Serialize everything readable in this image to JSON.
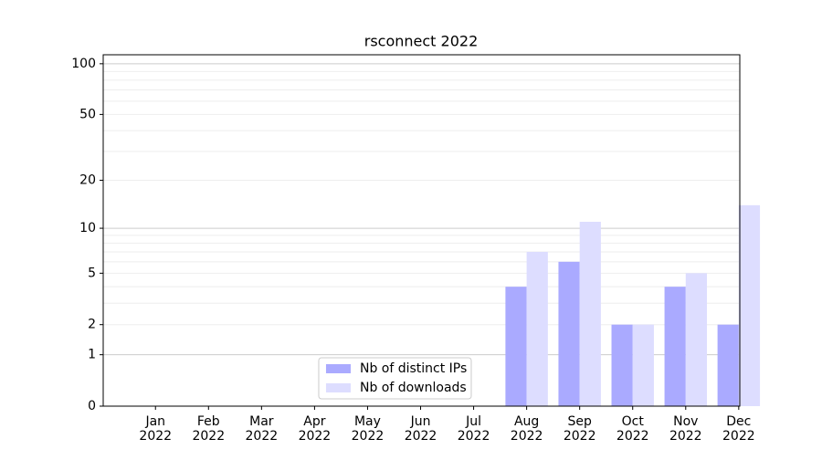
{
  "chart_data": {
    "type": "bar",
    "title": "rsconnect 2022",
    "categories": [
      "Jan\n2022",
      "Feb\n2022",
      "Mar\n2022",
      "Apr\n2022",
      "May\n2022",
      "Jun\n2022",
      "Jul\n2022",
      "Aug\n2022",
      "Sep\n2022",
      "Oct\n2022",
      "Nov\n2022",
      "Dec\n2022"
    ],
    "series": [
      {
        "name": "Nb of distinct IPs",
        "color": "#aaaaff",
        "values": [
          0,
          0,
          0,
          0,
          0,
          0,
          0,
          4,
          6,
          2,
          4,
          2
        ]
      },
      {
        "name": "Nb of downloads",
        "color": "#ddddff",
        "values": [
          0,
          0,
          0,
          0,
          0,
          0,
          0,
          7,
          11,
          2,
          5,
          14
        ]
      }
    ],
    "yscale": "log1p",
    "ylim": [
      0,
      113
    ],
    "yticks": [
      0,
      1,
      2,
      5,
      10,
      20,
      50,
      100
    ],
    "yminorticks": [
      3,
      4,
      6,
      7,
      8,
      9,
      30,
      40,
      60,
      70,
      80,
      90
    ],
    "grid": true,
    "legend": "lower center"
  }
}
